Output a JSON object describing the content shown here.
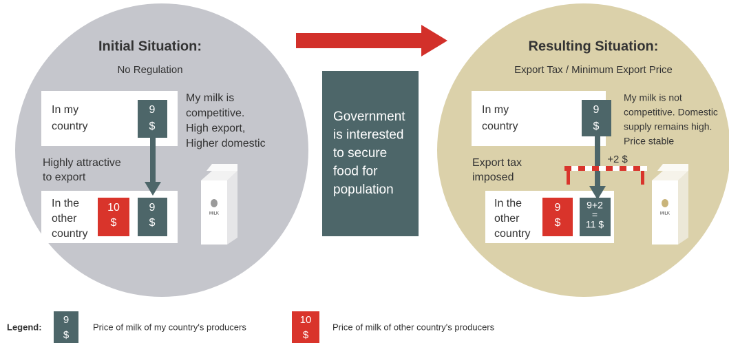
{
  "left": {
    "title": "Initial Situation:",
    "subtitle": "No Regulation",
    "home_label": [
      "In my",
      "country"
    ],
    "home_price": [
      "9",
      "$"
    ],
    "note": [
      "My milk is",
      "competitive.",
      "High export,",
      "Higher domestic"
    ],
    "arrow_label": [
      "Highly attractive",
      "to export"
    ],
    "other_label": [
      "In the",
      "other",
      "country"
    ],
    "other_price": [
      "10",
      "$"
    ],
    "import_price": [
      "9",
      "$"
    ],
    "carton": "MILK"
  },
  "center": [
    "Government",
    "is interested",
    "to secure",
    "food for",
    "population"
  ],
  "right": {
    "title": "Resulting Situation:",
    "subtitle": "Export Tax / Minimum Export Price",
    "home_label": [
      "In my",
      "country"
    ],
    "home_price": [
      "9",
      "$"
    ],
    "note": [
      "My milk is not",
      "competitive. Domestic",
      "supply remains high.",
      "Price stable"
    ],
    "arrow_label": [
      "Export tax",
      "imposed"
    ],
    "tax": "+2 $",
    "other_label": [
      "In the",
      "other",
      "country"
    ],
    "other_price": [
      "9",
      "$"
    ],
    "import_price": [
      "9+2",
      "=",
      "11 $"
    ],
    "carton": "MILK"
  },
  "legend": {
    "title": "Legend:",
    "items": [
      {
        "price": [
          "9",
          "$"
        ],
        "text": "Price of milk of my country's producers"
      },
      {
        "price": [
          "10",
          "$"
        ],
        "text": "Price of milk of other country's producers"
      }
    ]
  }
}
